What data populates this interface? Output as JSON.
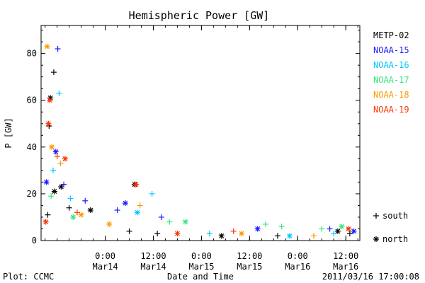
{
  "chart_data": {
    "type": "scatter",
    "title": "Hemispheric Power [GW]",
    "xlabel": "Date and Time",
    "ylabel": "P [GW]",
    "xlim": [
      "2011-03-13T08:00",
      "2011-03-16T15:30"
    ],
    "ylim": [
      0,
      92
    ],
    "yticks": [
      0,
      20,
      40,
      60,
      80
    ],
    "xticks": [
      {
        "t": "2011-03-14T00:00",
        "label1": "0:00",
        "label2": "Mar14"
      },
      {
        "t": "2011-03-14T12:00",
        "label1": "12:00",
        "label2": "Mar14"
      },
      {
        "t": "2011-03-15T00:00",
        "label1": "0:00",
        "label2": "Mar15"
      },
      {
        "t": "2011-03-15T12:00",
        "label1": "12:00",
        "label2": "Mar15"
      },
      {
        "t": "2011-03-16T00:00",
        "label1": "0:00",
        "label2": "Mar16"
      },
      {
        "t": "2011-03-16T12:00",
        "label1": "12:00",
        "label2": "Mar16"
      }
    ],
    "grid": false,
    "legend_placement": "right",
    "hemisphere_legend": [
      {
        "marker": "+",
        "label": "south"
      },
      {
        "marker": "*",
        "label": "north"
      }
    ],
    "series": [
      {
        "name": "METP-02",
        "color": "#000000",
        "points": [
          {
            "t": "2011-03-13T09:40",
            "v": 11,
            "m": "+"
          },
          {
            "t": "2011-03-13T10:00",
            "v": 49,
            "m": "+"
          },
          {
            "t": "2011-03-13T10:20",
            "v": 61,
            "m": "*"
          },
          {
            "t": "2011-03-13T11:10",
            "v": 72,
            "m": "+"
          },
          {
            "t": "2011-03-13T11:20",
            "v": 21,
            "m": "*"
          },
          {
            "t": "2011-03-13T13:00",
            "v": 23,
            "m": "*"
          },
          {
            "t": "2011-03-13T15:00",
            "v": 14,
            "m": "+"
          },
          {
            "t": "2011-03-13T20:20",
            "v": 13,
            "m": "*"
          },
          {
            "t": "2011-03-14T06:00",
            "v": 4,
            "m": "+"
          },
          {
            "t": "2011-03-14T07:20",
            "v": 24,
            "m": "*"
          },
          {
            "t": "2011-03-14T13:00",
            "v": 3,
            "m": "+"
          },
          {
            "t": "2011-03-15T05:00",
            "v": 2,
            "m": "*"
          },
          {
            "t": "2011-03-15T19:00",
            "v": 2,
            "m": "+"
          },
          {
            "t": "2011-03-16T10:00",
            "v": 4,
            "m": "*"
          },
          {
            "t": "2011-03-16T13:00",
            "v": 3,
            "m": "+"
          }
        ]
      },
      {
        "name": "NOAA-15",
        "color": "#1a1aff",
        "points": [
          {
            "t": "2011-03-13T09:20",
            "v": 25,
            "m": "*"
          },
          {
            "t": "2011-03-13T12:10",
            "v": 82,
            "m": "+"
          },
          {
            "t": "2011-03-13T11:40",
            "v": 38,
            "m": "*"
          },
          {
            "t": "2011-03-13T13:40",
            "v": 24,
            "m": "+"
          },
          {
            "t": "2011-03-13T19:00",
            "v": 17,
            "m": "+"
          },
          {
            "t": "2011-03-14T05:00",
            "v": 16,
            "m": "*"
          },
          {
            "t": "2011-03-14T03:00",
            "v": 13,
            "m": "+"
          },
          {
            "t": "2011-03-14T14:00",
            "v": 10,
            "m": "+"
          },
          {
            "t": "2011-03-15T14:00",
            "v": 5,
            "m": "*"
          },
          {
            "t": "2011-03-16T08:00",
            "v": 5,
            "m": "+"
          },
          {
            "t": "2011-03-16T14:00",
            "v": 4,
            "m": "*"
          }
        ]
      },
      {
        "name": "NOAA-16",
        "color": "#00c8ff",
        "points": [
          {
            "t": "2011-03-13T12:30",
            "v": 63,
            "m": "+"
          },
          {
            "t": "2011-03-13T11:00",
            "v": 30,
            "m": "+"
          },
          {
            "t": "2011-03-13T15:20",
            "v": 18,
            "m": "+"
          },
          {
            "t": "2011-03-14T11:40",
            "v": 20,
            "m": "+"
          },
          {
            "t": "2011-03-14T08:00",
            "v": 12,
            "m": "*"
          },
          {
            "t": "2011-03-15T02:00",
            "v": 3,
            "m": "+"
          },
          {
            "t": "2011-03-15T22:00",
            "v": 2,
            "m": "*"
          },
          {
            "t": "2011-03-16T09:00",
            "v": 3,
            "m": "+"
          }
        ]
      },
      {
        "name": "NOAA-17",
        "color": "#33e67a",
        "points": [
          {
            "t": "2011-03-13T10:30",
            "v": 19,
            "m": "+"
          },
          {
            "t": "2011-03-13T16:00",
            "v": 10,
            "m": "*"
          },
          {
            "t": "2011-03-14T16:00",
            "v": 8,
            "m": "+"
          },
          {
            "t": "2011-03-14T20:00",
            "v": 8,
            "m": "*"
          },
          {
            "t": "2011-03-15T16:00",
            "v": 7,
            "m": "+"
          },
          {
            "t": "2011-03-15T20:00",
            "v": 6,
            "m": "+"
          },
          {
            "t": "2011-03-16T06:00",
            "v": 5,
            "m": "+"
          },
          {
            "t": "2011-03-16T11:00",
            "v": 6,
            "m": "*"
          }
        ]
      },
      {
        "name": "NOAA-18",
        "color": "#ff9900",
        "points": [
          {
            "t": "2011-03-13T09:30",
            "v": 83,
            "m": "*"
          },
          {
            "t": "2011-03-13T10:40",
            "v": 40,
            "m": "*"
          },
          {
            "t": "2011-03-13T12:50",
            "v": 33,
            "m": "+"
          },
          {
            "t": "2011-03-13T18:00",
            "v": 11,
            "m": "*"
          },
          {
            "t": "2011-03-14T01:00",
            "v": 7,
            "m": "*"
          },
          {
            "t": "2011-03-14T08:40",
            "v": 15,
            "m": "+"
          },
          {
            "t": "2011-03-15T10:00",
            "v": 3,
            "m": "*"
          },
          {
            "t": "2011-03-16T04:00",
            "v": 2,
            "m": "+"
          }
        ]
      },
      {
        "name": "NOAA-19",
        "color": "#ff3300",
        "points": [
          {
            "t": "2011-03-13T09:10",
            "v": 8,
            "m": "*"
          },
          {
            "t": "2011-03-13T10:10",
            "v": 60,
            "m": "*"
          },
          {
            "t": "2011-03-13T09:50",
            "v": 50,
            "m": "*"
          },
          {
            "t": "2011-03-13T12:00",
            "v": 36,
            "m": "+"
          },
          {
            "t": "2011-03-13T14:00",
            "v": 35,
            "m": "*"
          },
          {
            "t": "2011-03-13T17:00",
            "v": 12,
            "m": "+"
          },
          {
            "t": "2011-03-14T07:40",
            "v": 24,
            "m": "*"
          },
          {
            "t": "2011-03-14T18:00",
            "v": 3,
            "m": "*"
          },
          {
            "t": "2011-03-15T08:00",
            "v": 4,
            "m": "+"
          },
          {
            "t": "2011-03-16T12:40",
            "v": 5,
            "m": "*"
          }
        ]
      }
    ]
  },
  "footer": {
    "left": "Plot: CCMC",
    "right": "2011/03/16 17:00:08"
  }
}
